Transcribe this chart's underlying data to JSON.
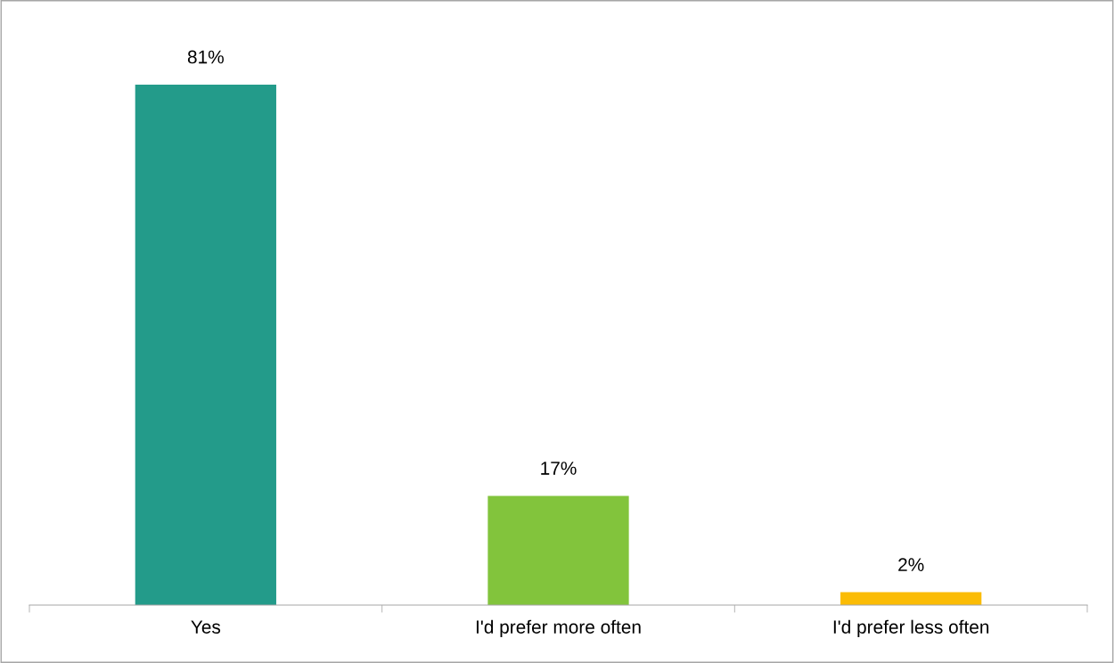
{
  "chart_data": {
    "type": "bar",
    "categories": [
      "Yes",
      "I'd prefer more often",
      "I'd prefer less often"
    ],
    "values": [
      81,
      17,
      2
    ],
    "colors": [
      "#239b8a",
      "#82c43c",
      "#fbbc05"
    ],
    "value_labels": [
      "81%",
      "17%",
      "2%"
    ],
    "grid": false,
    "legend": false
  }
}
